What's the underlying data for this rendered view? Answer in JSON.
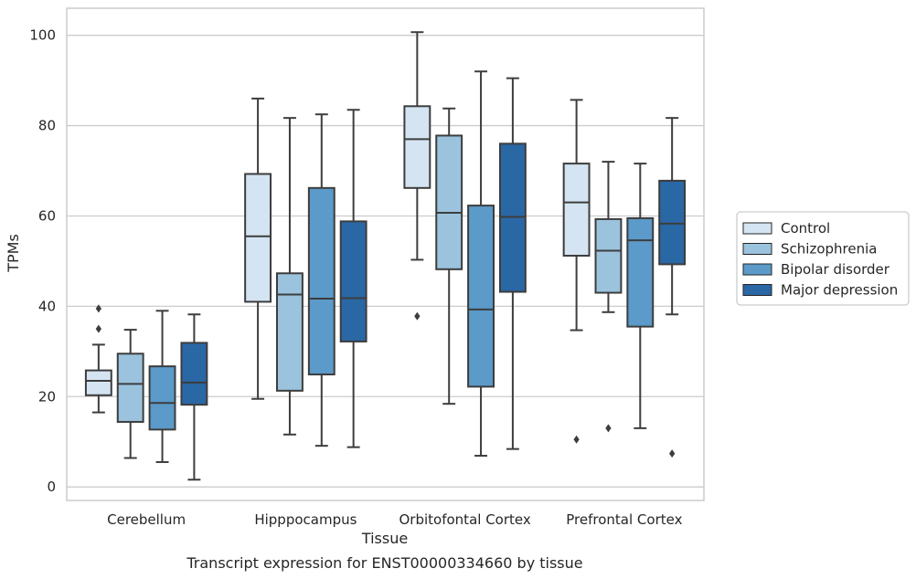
{
  "chart_data": {
    "type": "box",
    "xlabel": "Tissue",
    "ylabel": "TPMs",
    "caption": "Transcript expression for ENST00000334660 by tissue",
    "ylim": [
      -3,
      106
    ],
    "yticks": [
      0,
      20,
      40,
      60,
      80,
      100
    ],
    "grid": "horizontal",
    "legend_position": "right",
    "categories": [
      "Cerebellum",
      "Hipppocampus",
      "Orbitofontal Cortex",
      "Prefrontal Cortex"
    ],
    "series": [
      {
        "name": "Control",
        "color": "#d4e4f2",
        "boxes": [
          {
            "whislo": 16.5,
            "q1": 20.3,
            "med": 23.5,
            "q3": 25.8,
            "whishi": 31.5,
            "fliers": [
              35,
              39.5
            ]
          },
          {
            "whislo": 19.5,
            "q1": 41,
            "med": 55.5,
            "q3": 69.3,
            "whishi": 86,
            "fliers": []
          },
          {
            "whislo": 50.3,
            "q1": 66.2,
            "med": 77,
            "q3": 84.3,
            "whishi": 100.7,
            "fliers": [
              37.8
            ]
          },
          {
            "whislo": 34.7,
            "q1": 51.2,
            "med": 63,
            "q3": 71.6,
            "whishi": 85.7,
            "fliers": [
              10.5
            ]
          }
        ]
      },
      {
        "name": "Schizophrenia",
        "color": "#9bc3de",
        "boxes": [
          {
            "whislo": 6.4,
            "q1": 14.4,
            "med": 22.8,
            "q3": 29.5,
            "whishi": 34.8,
            "fliers": []
          },
          {
            "whislo": 11.6,
            "q1": 21.3,
            "med": 42.6,
            "q3": 47.3,
            "whishi": 81.7,
            "fliers": []
          },
          {
            "whislo": 18.4,
            "q1": 48.2,
            "med": 60.7,
            "q3": 77.8,
            "whishi": 83.8,
            "fliers": []
          },
          {
            "whislo": 38.7,
            "q1": 43,
            "med": 52.3,
            "q3": 59.3,
            "whishi": 72,
            "fliers": [
              13
            ]
          }
        ]
      },
      {
        "name": "Bipolar disorder",
        "color": "#5b9ac9",
        "boxes": [
          {
            "whislo": 5.5,
            "q1": 12.7,
            "med": 18.6,
            "q3": 26.7,
            "whishi": 39,
            "fliers": []
          },
          {
            "whislo": 9.1,
            "q1": 24.9,
            "med": 41.7,
            "q3": 66.2,
            "whishi": 82.5,
            "fliers": []
          },
          {
            "whislo": 6.9,
            "q1": 22.2,
            "med": 39.3,
            "q3": 62.3,
            "whishi": 92,
            "fliers": []
          },
          {
            "whislo": 13,
            "q1": 35.5,
            "med": 54.6,
            "q3": 59.5,
            "whishi": 71.6,
            "fliers": []
          }
        ]
      },
      {
        "name": "Major depression",
        "color": "#2a67a5",
        "boxes": [
          {
            "whislo": 1.6,
            "q1": 18.2,
            "med": 23.1,
            "q3": 31.9,
            "whishi": 38.2,
            "fliers": []
          },
          {
            "whislo": 8.8,
            "q1": 32.2,
            "med": 41.8,
            "q3": 58.8,
            "whishi": 83.5,
            "fliers": []
          },
          {
            "whislo": 8.4,
            "q1": 43.2,
            "med": 59.8,
            "q3": 76,
            "whishi": 90.5,
            "fliers": []
          },
          {
            "whislo": 38.2,
            "q1": 49.3,
            "med": 58.3,
            "q3": 67.8,
            "whishi": 81.7,
            "fliers": [
              7.4
            ]
          }
        ]
      }
    ],
    "style": {
      "line_color": "#3d3d3d",
      "grid_color": "#cccccc",
      "frame_color": "#cccccc",
      "background": "#ffffff"
    }
  }
}
